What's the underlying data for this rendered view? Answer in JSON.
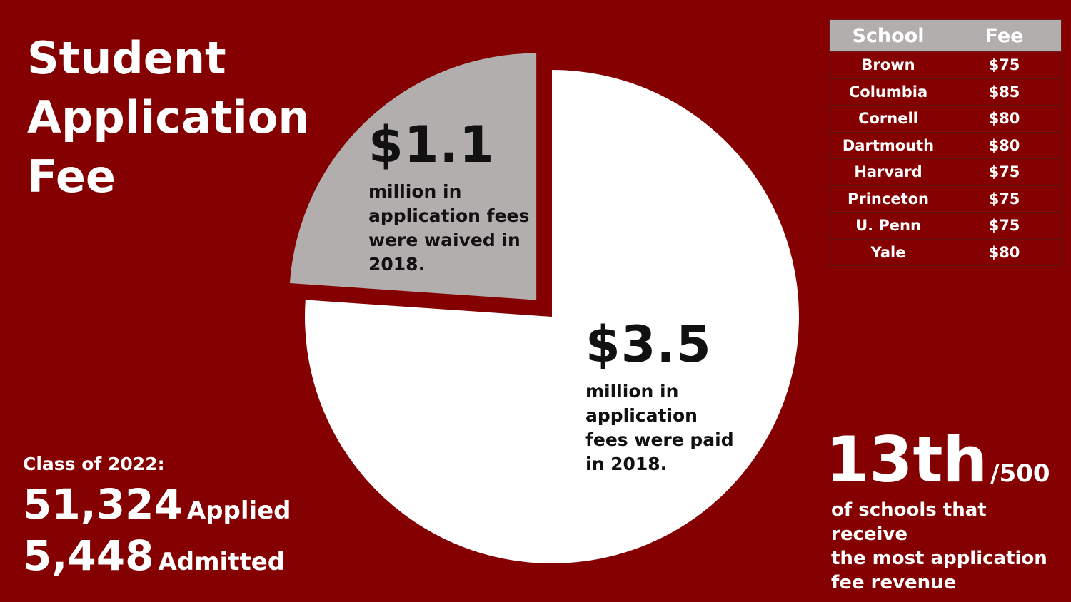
{
  "title_lines": [
    "Student",
    "Application",
    "Fee"
  ],
  "colors": {
    "background": "#850000",
    "waived": "#b3aeae",
    "paid": "#ffffff",
    "text_dark": "#111111"
  },
  "chart_data": {
    "type": "pie",
    "title": "Student Application Fee",
    "unit": "million dollars",
    "slices": [
      {
        "name": "waived",
        "value": 1.1,
        "value_label": "$1.1",
        "description": "million in\napplication fees\nwere waived in\n2018.",
        "color": "#b3aeae",
        "exploded": true
      },
      {
        "name": "paid",
        "value": 3.5,
        "value_label": "$3.5",
        "description": "million in\napplication\nfees were paid\nin 2018.",
        "color": "#ffffff",
        "exploded": false
      }
    ]
  },
  "fee_table": {
    "headers": [
      "School",
      "Fee"
    ],
    "rows": [
      [
        "Brown",
        "$75"
      ],
      [
        "Columbia",
        "$85"
      ],
      [
        "Cornell",
        "$80"
      ],
      [
        "Dartmouth",
        "$80"
      ],
      [
        "Harvard",
        "$75"
      ],
      [
        "Princeton",
        "$75"
      ],
      [
        "U. Penn",
        "$75"
      ],
      [
        "Yale",
        "$80"
      ]
    ]
  },
  "class_stats": {
    "label": "Class of 2022:",
    "applied_number": "51,324",
    "applied_label": "Applied",
    "admitted_number": "5,448",
    "admitted_label": "Admitted"
  },
  "ranking": {
    "rank": "13th",
    "out_of": "/500",
    "description": "of schools that receive\nthe most application\nfee revenue"
  }
}
